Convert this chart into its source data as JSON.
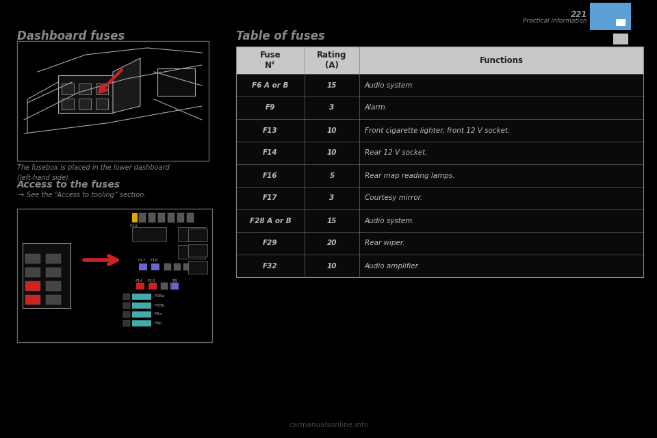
{
  "page_number": "221",
  "page_label": "Practical information",
  "left_title": "Dashboard fuses",
  "right_title": "Table of fuses",
  "left_text1": "The fusebox is placed in the lower dashboard\n(left-hand side).",
  "left_title2": "Access to the fuses",
  "left_text2": "F   See the “Access to tooling” section.",
  "table_headers": [
    "Fuse\nN°",
    "Rating\n(A)",
    "Functions"
  ],
  "table_rows": [
    [
      "F6 A or B",
      "15",
      "Audio system."
    ],
    [
      "F9",
      "3",
      "Alarm."
    ],
    [
      "F13",
      "10",
      "Front cigarette lighter, front 12 V socket."
    ],
    [
      "F14",
      "10",
      "Rear 12 V socket."
    ],
    [
      "F16",
      "5",
      "Rear map reading lamps."
    ],
    [
      "F17",
      "3",
      "Courtesy mirror."
    ],
    [
      "F28 A or B",
      "15",
      "Audio system."
    ],
    [
      "F29",
      "20",
      "Rear wiper."
    ],
    [
      "F32",
      "10",
      "Audio amplifier."
    ]
  ],
  "bg_color": "#000000",
  "header_bg": "#c8c8c8",
  "header_text_color": "#222222",
  "row_bg": "#0a0a0a",
  "row_border": "#555555",
  "row_text_color": "#bbbbbb",
  "title_color": "#888888",
  "body_text_color": "#888888",
  "blue_color": "#5b9fd4",
  "gray_tab_color": "#c0c0c0",
  "image_border": "#666666",
  "image_bg": "#000000",
  "sketch_color": "#aaaaaa",
  "red_arrow": "#cc2222",
  "fuse_colors": [
    "#cc2222",
    "#cc2222",
    "#888888",
    "#888888",
    "#6666cc",
    "#6666cc",
    "#888888"
  ],
  "fuse2_colors": [
    "#ddaa00",
    "#888888",
    "#888888",
    "#888888",
    "#888888",
    "#888888"
  ],
  "fuse3_colors": [
    "#6666cc",
    "#6666cc"
  ],
  "fuse4_colors": [
    "#cc2222",
    "#cc2222",
    "#888888",
    "#888888",
    "#6666cc"
  ],
  "teal_fuse": "#44aaaa"
}
